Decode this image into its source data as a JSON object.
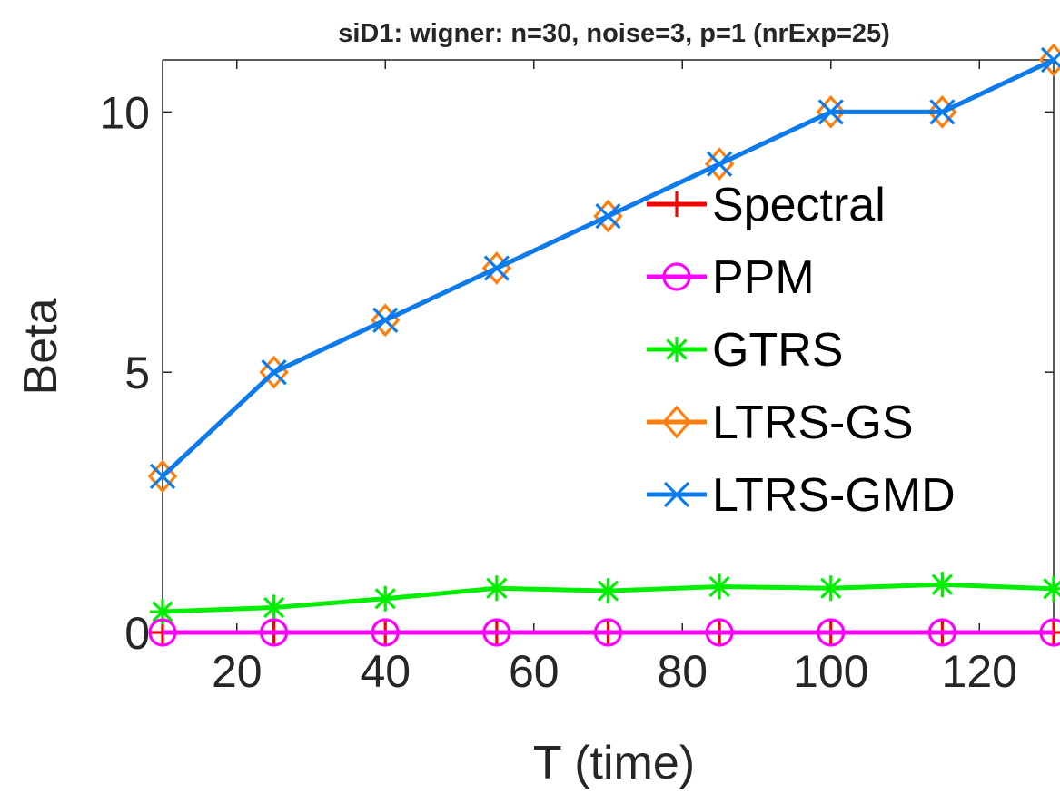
{
  "chart_data": {
    "type": "line",
    "title": "siD1: wigner: n=30, noise=3, p=1 (nrExp=25)",
    "xlabel": "T (time)",
    "ylabel": "Beta",
    "x": [
      10,
      25,
      40,
      55,
      70,
      85,
      100,
      115,
      130
    ],
    "xlim": [
      10,
      130
    ],
    "ylim": [
      0,
      11
    ],
    "xticks": [
      20,
      40,
      60,
      80,
      100,
      120
    ],
    "yticks": [
      0,
      5,
      10
    ],
    "grid": false,
    "legend_position": "right",
    "series": [
      {
        "name": "Spectral",
        "color": "#ff0000",
        "marker": "plus",
        "values": [
          0,
          0,
          0,
          0,
          0,
          0,
          0,
          0,
          0
        ]
      },
      {
        "name": "PPM",
        "color": "#ff00ff",
        "marker": "circle",
        "values": [
          0,
          0,
          0,
          0,
          0,
          0,
          0,
          0,
          0
        ]
      },
      {
        "name": "GTRS",
        "color": "#00ee00",
        "marker": "asterisk",
        "values": [
          0.4,
          0.48,
          0.65,
          0.85,
          0.8,
          0.88,
          0.85,
          0.92,
          0.84
        ]
      },
      {
        "name": "LTRS-GS",
        "color": "#ff7f0e",
        "marker": "diamond",
        "values": [
          3,
          5,
          6,
          7,
          8,
          9,
          10,
          10,
          11
        ]
      },
      {
        "name": "LTRS-GMD",
        "color": "#0a7cf0",
        "marker": "x",
        "values": [
          3,
          5,
          6,
          7,
          8,
          9,
          10,
          10,
          11
        ]
      }
    ]
  }
}
